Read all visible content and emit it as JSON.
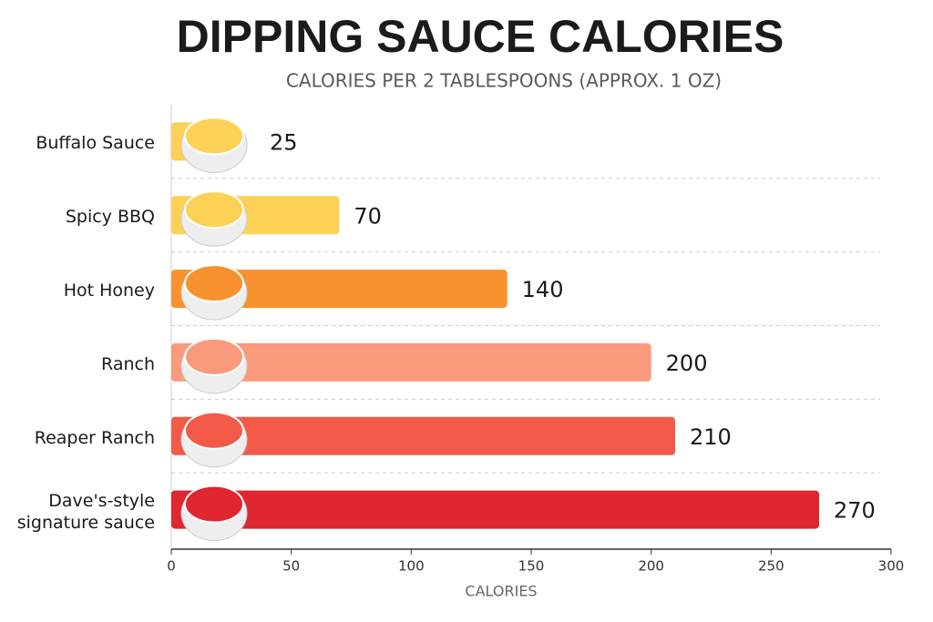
{
  "chart_data": {
    "type": "barh",
    "title": "DIPPING SAUCE CALORIES",
    "subtitle": "CALORIES PER 2 TABLESPOONS (APPROX. 1 OZ)",
    "xlabel": "CALORIES",
    "categories": [
      "Buffalo Sauce",
      "Spicy BBQ",
      "Hot Honey",
      "Ranch",
      "Reaper Ranch",
      "Dave's-style signature sauce"
    ],
    "values": [
      25,
      70,
      140,
      200,
      210,
      270
    ],
    "colors": [
      "#fcd155",
      "#fcd155",
      "#f7922e",
      "#fa9a7c",
      "#f25a47",
      "#e0262e"
    ],
    "xlim": [
      0,
      300
    ],
    "xticks": [
      0,
      50,
      100,
      150,
      200,
      250,
      300
    ],
    "grid": true
  }
}
